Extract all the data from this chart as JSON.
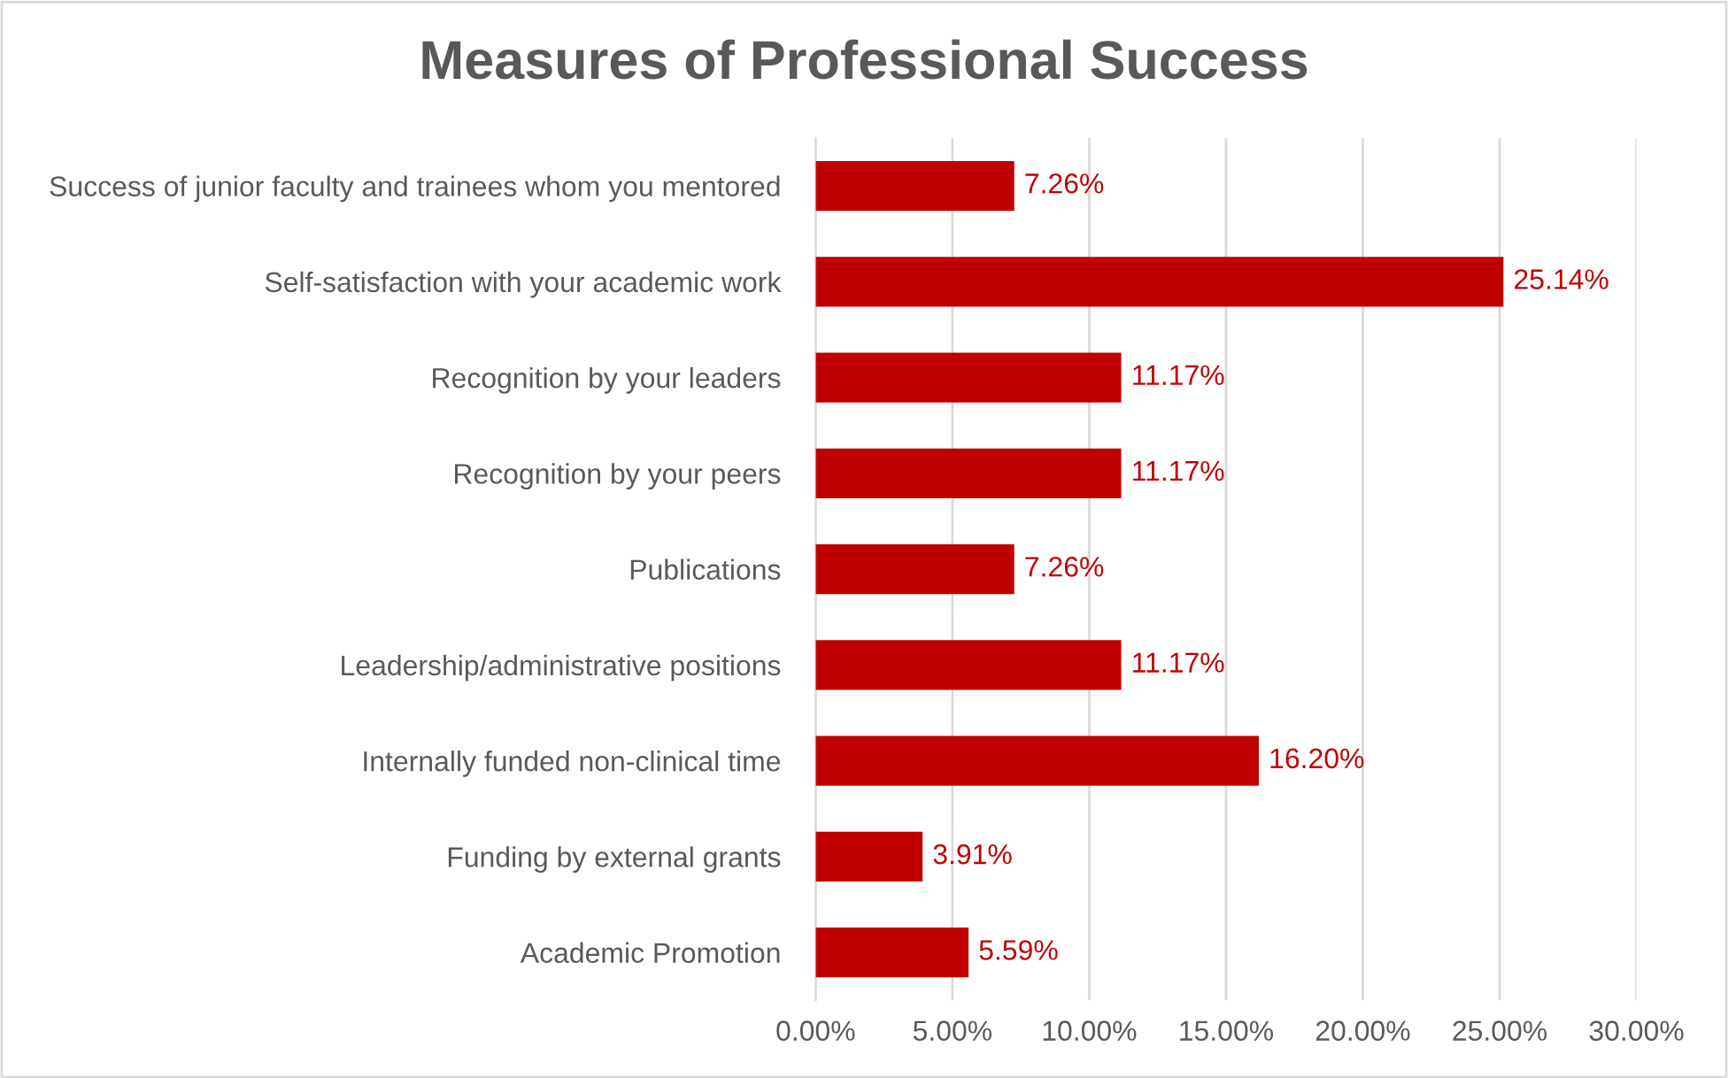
{
  "chart_data": {
    "type": "bar",
    "orientation": "horizontal",
    "title": "Measures of Professional Success",
    "categories": [
      "Success of junior faculty and trainees whom you mentored",
      "Self-satisfaction with your academic work",
      "Recognition by your leaders",
      "Recognition by your peers",
      "Publications",
      "Leadership/administrative positions",
      "Internally funded non-clinical time",
      "Funding by external grants",
      "Academic Promotion"
    ],
    "values": [
      7.26,
      25.14,
      11.17,
      11.17,
      7.26,
      11.17,
      16.2,
      3.91,
      5.59
    ],
    "value_labels": [
      "7.26%",
      "25.14%",
      "11.17%",
      "11.17%",
      "7.26%",
      "11.17%",
      "16.20%",
      "3.91%",
      "5.59%"
    ],
    "color": "#c00000",
    "xlim": [
      0,
      30
    ],
    "xticks": [
      {
        "value": 0,
        "label": "0.00%"
      },
      {
        "value": 5,
        "label": "5.00%"
      },
      {
        "value": 10,
        "label": "10.00%"
      },
      {
        "value": 15,
        "label": "15.00%"
      },
      {
        "value": 20,
        "label": "20.00%"
      },
      {
        "value": 25,
        "label": "25.00%"
      },
      {
        "value": 30,
        "label": "30.00%"
      }
    ],
    "grid": "x",
    "legend": false
  }
}
